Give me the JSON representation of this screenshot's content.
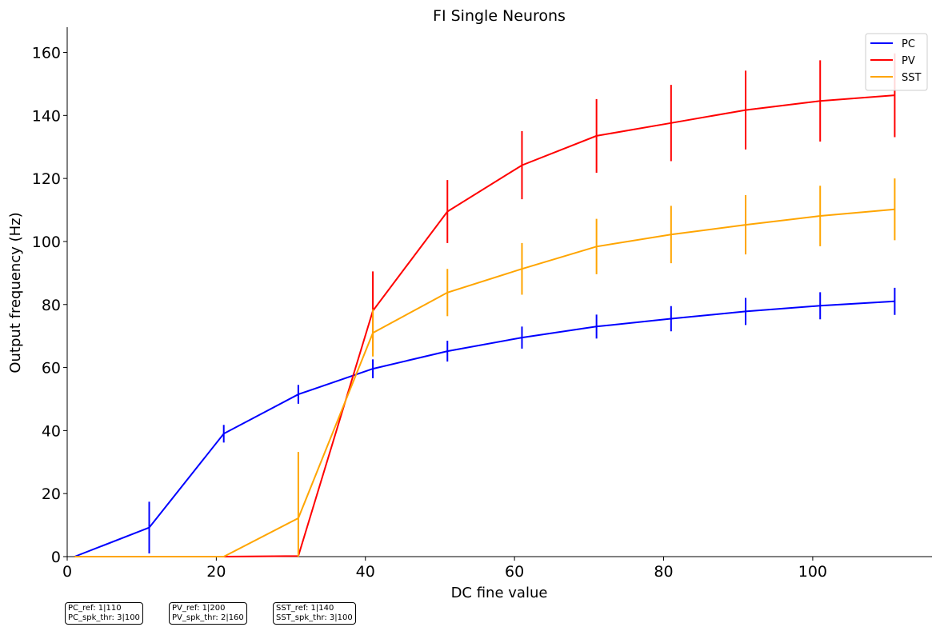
{
  "chart_data": {
    "type": "line",
    "title": "FI Single Neurons",
    "xlabel": "DC fine value",
    "ylabel": "Output frequency (Hz)",
    "xlim": [
      0,
      116
    ],
    "ylim": [
      0,
      168
    ],
    "xticks": [
      0,
      20,
      40,
      60,
      80,
      100
    ],
    "yticks": [
      0,
      20,
      40,
      60,
      80,
      100,
      120,
      140,
      160
    ],
    "x": [
      1,
      11,
      21,
      31,
      41,
      51,
      61,
      71,
      81,
      91,
      101,
      111
    ],
    "legend": {
      "placement": "top-right"
    },
    "grid": false,
    "series": [
      {
        "name": "PC",
        "color": "#0000ff",
        "values": [
          0,
          9.2,
          39,
          51.5,
          59.6,
          65.2,
          69.5,
          73,
          75.5,
          77.8,
          79.6,
          81
        ],
        "errors": [
          0,
          8.2,
          2.8,
          3,
          3,
          3.3,
          3.5,
          3.8,
          4,
          4.3,
          4.3,
          4.3
        ]
      },
      {
        "name": "PV",
        "color": "#ff0000",
        "values": [
          0,
          0,
          0,
          0.2,
          78,
          109.5,
          124.2,
          133.5,
          137.6,
          141.7,
          144.6,
          146.4
        ],
        "errors": [
          0,
          0,
          0,
          0,
          12.5,
          10,
          10.8,
          11.7,
          12.1,
          12.5,
          12.9,
          13.3
        ]
      },
      {
        "name": "SST",
        "color": "#ffa500",
        "values": [
          0,
          0,
          0,
          12.2,
          71,
          83.8,
          91.3,
          98.4,
          102.2,
          105.3,
          108.1,
          110.2
        ],
        "errors": [
          0,
          0,
          0,
          21,
          7.5,
          7.5,
          8.2,
          8.8,
          9.1,
          9.4,
          9.6,
          9.8
        ]
      }
    ]
  },
  "annotations": [
    {
      "line1": "PC_ref: 1|110",
      "line2": "PC_spk_thr: 3|100"
    },
    {
      "line1": "PV_ref: 1|200",
      "line2": "PV_spk_thr: 2|160"
    },
    {
      "line1": "SST_ref: 1|140",
      "line2": "SST_spk_thr: 3|100"
    }
  ]
}
